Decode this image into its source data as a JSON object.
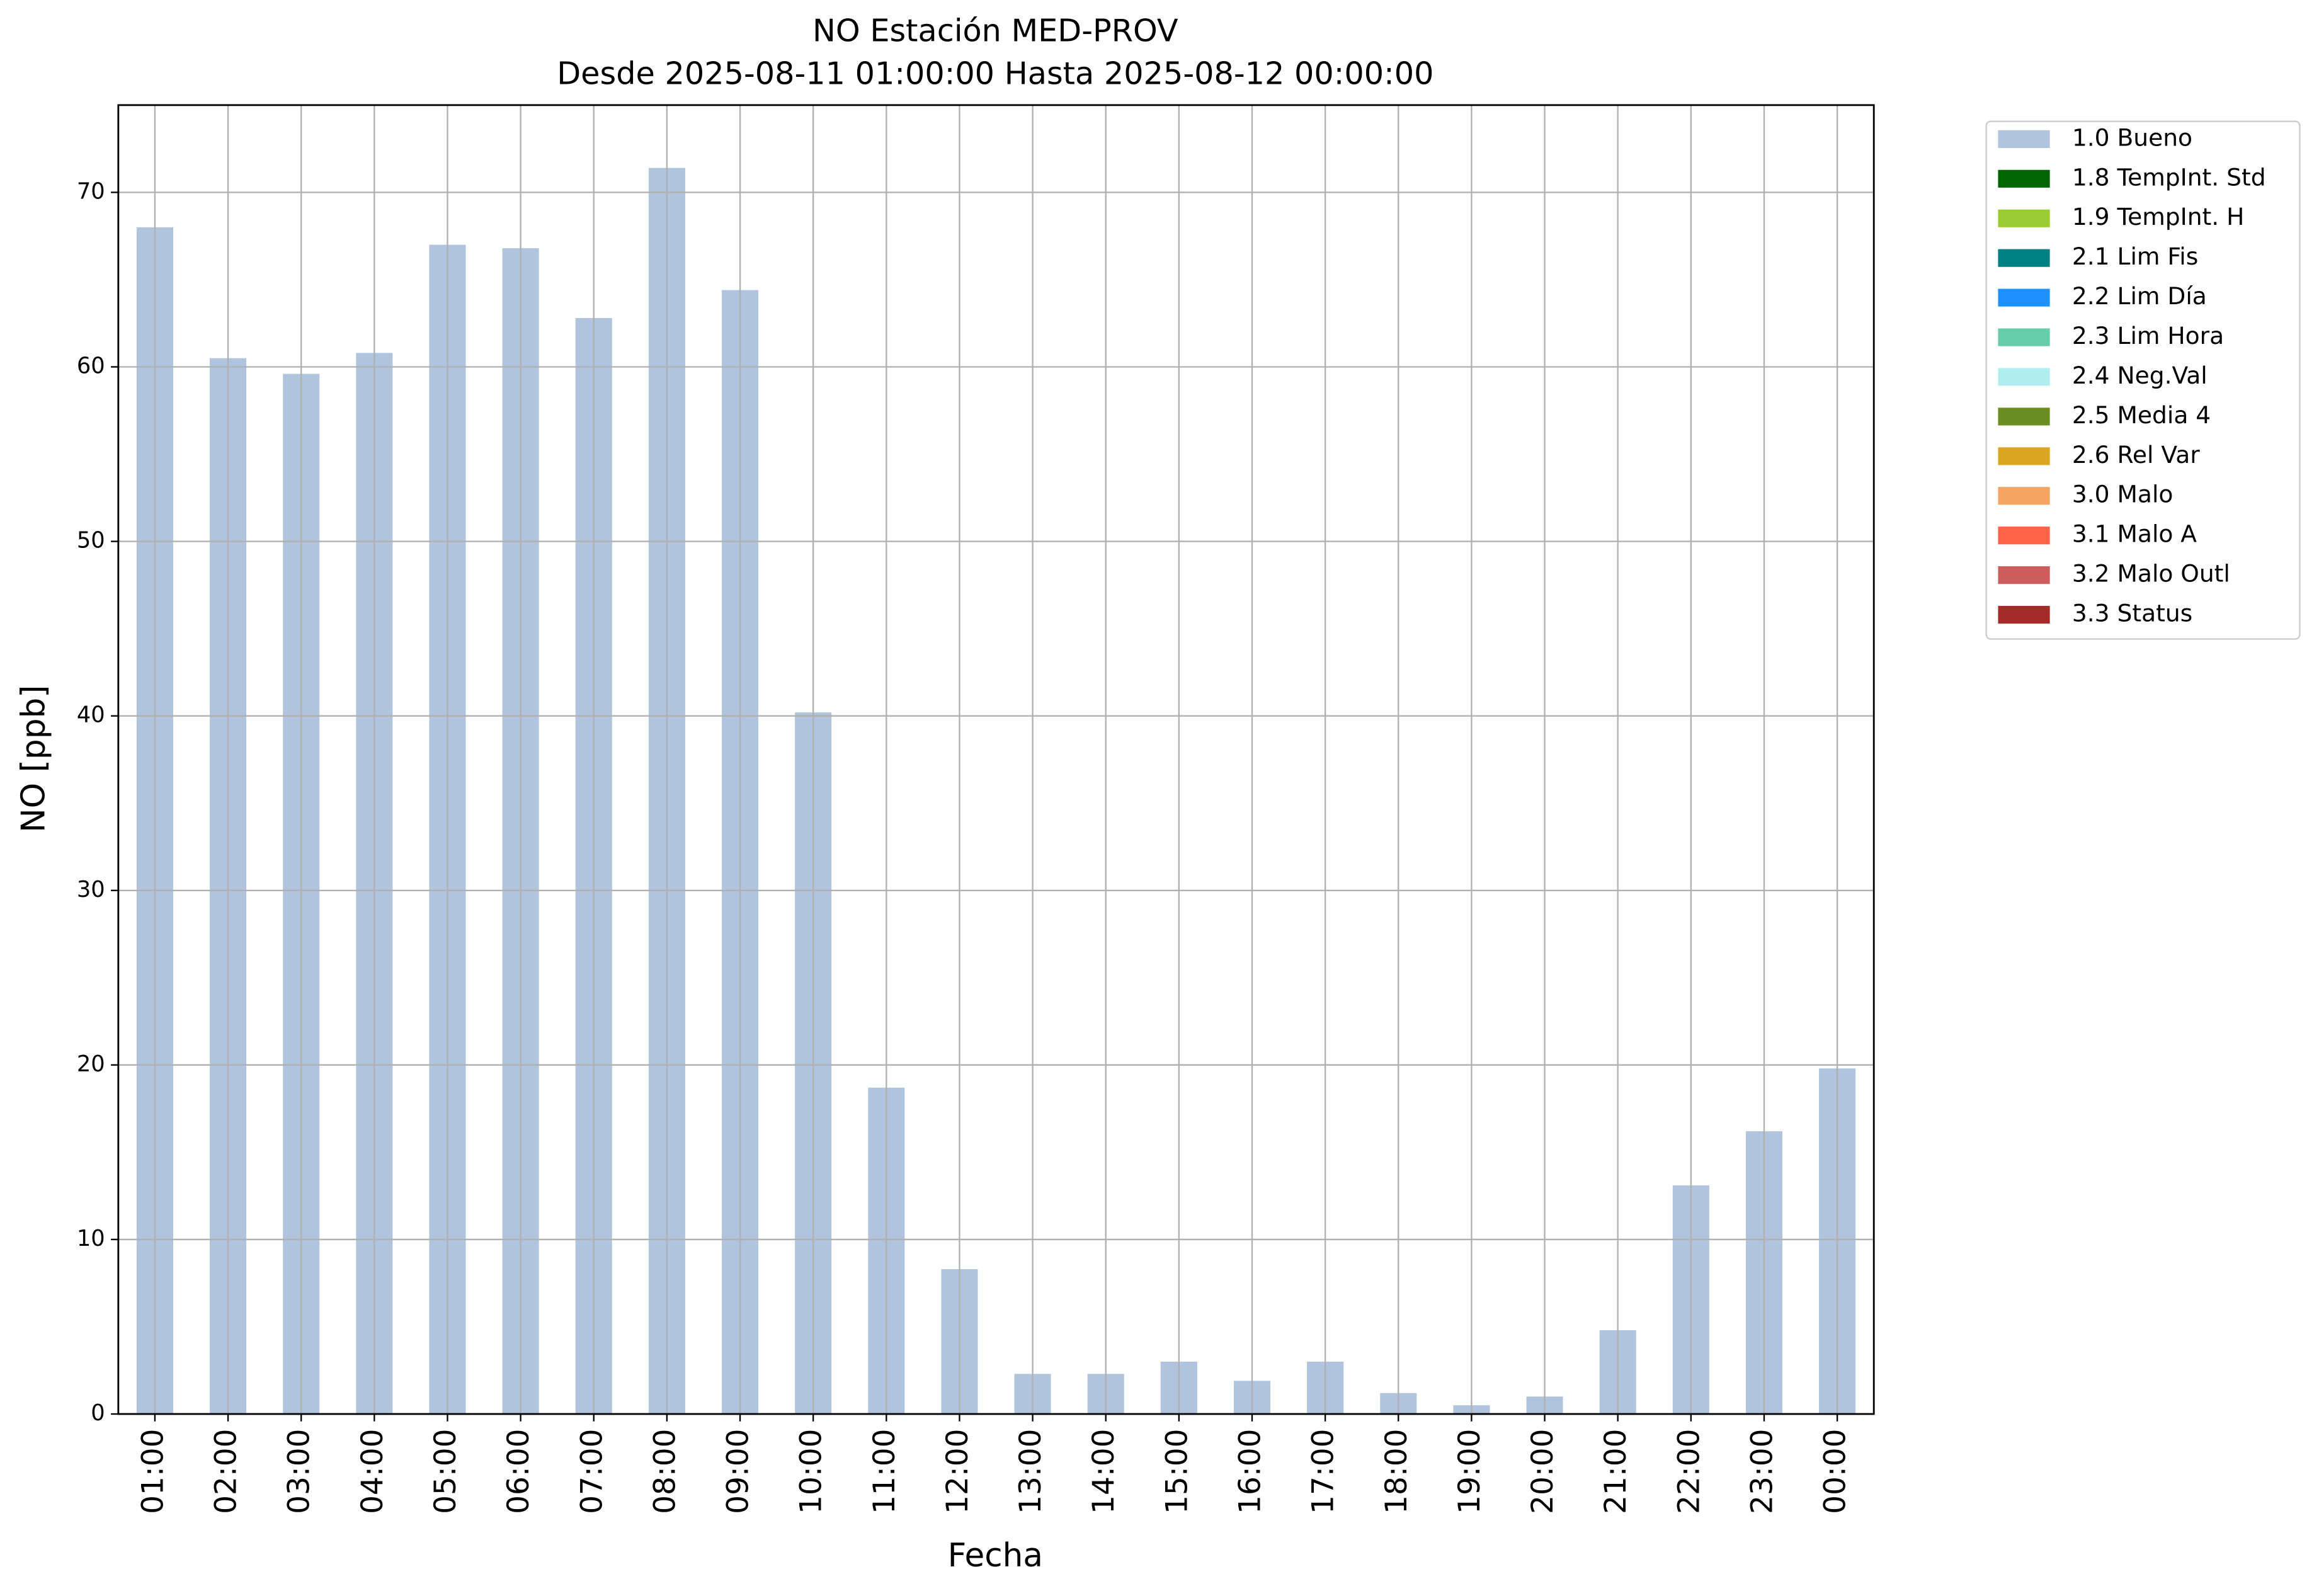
{
  "chart_data": {
    "type": "bar",
    "title": "NO Estación MED-PROV",
    "subtitle": "Desde 2025-08-11 01:00:00 Hasta 2025-08-12 00:00:00",
    "x_label": "Fecha",
    "y_label": "NO [ppb]",
    "categories": [
      "01:00",
      "02:00",
      "03:00",
      "04:00",
      "05:00",
      "06:00",
      "07:00",
      "08:00",
      "09:00",
      "10:00",
      "11:00",
      "12:00",
      "13:00",
      "14:00",
      "15:00",
      "16:00",
      "17:00",
      "18:00",
      "19:00",
      "20:00",
      "21:00",
      "22:00",
      "23:00",
      "00:00"
    ],
    "values": [
      68.0,
      60.5,
      59.6,
      60.8,
      67.0,
      66.8,
      62.8,
      71.4,
      64.4,
      40.2,
      18.7,
      8.3,
      2.3,
      2.3,
      3.0,
      1.9,
      3.0,
      1.2,
      0.5,
      1.0,
      4.8,
      13.1,
      16.2,
      19.8
    ],
    "color": "#b0c4de",
    "ylim": [
      0,
      75
    ],
    "yticks": [
      0,
      10,
      20,
      30,
      40,
      50,
      60,
      70
    ],
    "grid": true,
    "legend_position": "outside-upper-right",
    "legend_items": [
      {
        "name": "1.0 Bueno",
        "color": "#b0c4de"
      },
      {
        "name": "1.8 TempInt. Std",
        "color": "#006400"
      },
      {
        "name": "1.9 TempInt. H",
        "color": "#9acd32"
      },
      {
        "name": "2.1 Lim Fis",
        "color": "#008080"
      },
      {
        "name": "2.2 Lim Día",
        "color": "#1e90ff"
      },
      {
        "name": "2.3 Lim Hora",
        "color": "#66cdaa"
      },
      {
        "name": "2.4 Neg.Val",
        "color": "#afeeee"
      },
      {
        "name": "2.5 Media 4",
        "color": "#6b8e23"
      },
      {
        "name": "2.6 Rel Var",
        "color": "#daa520"
      },
      {
        "name": "3.0 Malo",
        "color": "#f4a460"
      },
      {
        "name": "3.1 Malo A",
        "color": "#ff6347"
      },
      {
        "name": "3.2 Malo Outl",
        "color": "#cd5c5c"
      },
      {
        "name": "3.3 Status",
        "color": "#a52a2a"
      }
    ]
  }
}
